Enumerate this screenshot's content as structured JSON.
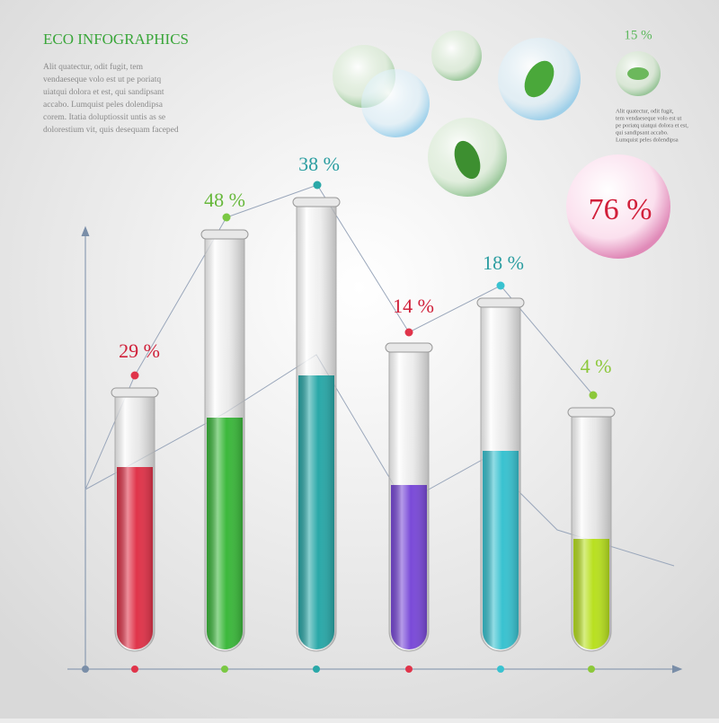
{
  "header": {
    "title": "ECO INFOGRAPHICS",
    "body": [
      "Alit quatectur, odit fugit, tem",
      "vendaeseque volo est ut pe poriatq",
      "uiatqui dolora et est, qui sandipsant",
      "accabo. Lumquist peles dolendipsa",
      "corem. Itatia doluptiossit untis as se",
      "dolorestium vit, quis desequam faceped"
    ]
  },
  "bubbles": {
    "small_label": "15 %",
    "small_text": [
      "Alit quatectur, odit fugit,",
      "tem vendaeseque volo est ut",
      "pe poriatq uiatqui dolora et est,",
      "qui sandipsant accabo.",
      "Lumquist peles dolendipsa"
    ],
    "big_label": "76 %"
  },
  "tubes": [
    {
      "label": "29 %"
    },
    {
      "label": "48 %"
    },
    {
      "label": "38 %"
    },
    {
      "label": "14 %"
    },
    {
      "label": "18 %"
    },
    {
      "label": "4 %"
    }
  ]
}
